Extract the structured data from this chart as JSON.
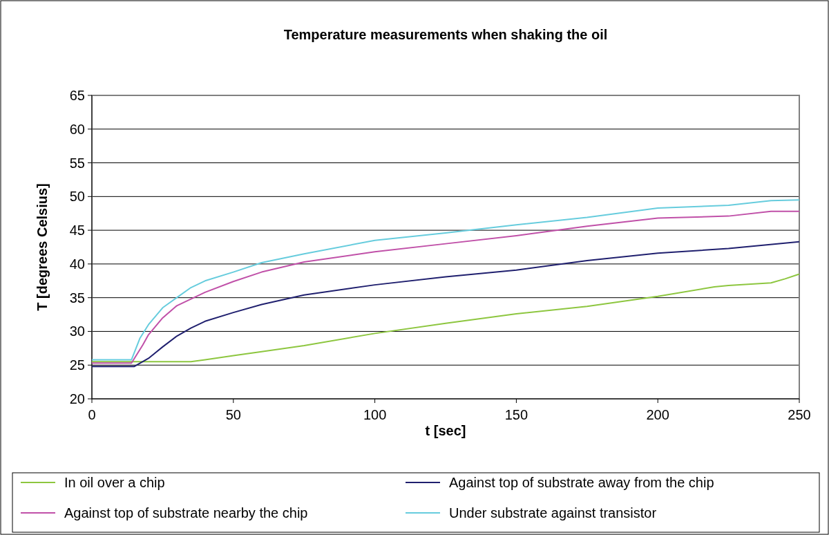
{
  "chart_data": {
    "type": "line",
    "title": "Temperature measurements when shaking the oil",
    "xlabel": "t [sec]",
    "ylabel": "T [degrees Celsius]",
    "xlim": [
      0,
      250
    ],
    "xticks": [
      0,
      50,
      100,
      150,
      200,
      250
    ],
    "ylim": [
      20,
      65
    ],
    "yticks": [
      20,
      25,
      30,
      35,
      40,
      45,
      50,
      55,
      60,
      65
    ],
    "grid": "y",
    "legend": "bottom",
    "marker": "none",
    "line_style": "solid",
    "series": [
      {
        "name": "In oil over a chip",
        "color": "#8dc63f",
        "x": [
          0,
          15,
          35,
          40,
          50,
          60,
          75,
          100,
          125,
          150,
          175,
          200,
          220,
          225,
          240,
          245,
          250
        ],
        "values": [
          25.5,
          25.5,
          25.5,
          25.8,
          26.4,
          27,
          27.9,
          29.7,
          31.2,
          32.6,
          33.7,
          35.2,
          36.6,
          36.8,
          37.2,
          37.8,
          38.5
        ]
      },
      {
        "name": "Against top of substrate away from the chip",
        "color": "#1f1f6e",
        "x": [
          0,
          15,
          20,
          25,
          30,
          35,
          40,
          50,
          60,
          75,
          100,
          125,
          150,
          175,
          200,
          225,
          250
        ],
        "values": [
          24.8,
          24.8,
          26,
          27.7,
          29.3,
          30.5,
          31.5,
          32.8,
          34,
          35.4,
          36.9,
          38.1,
          39.1,
          40.5,
          41.6,
          42.3,
          43.3
        ]
      },
      {
        "name": "Against top of substrate nearby the chip",
        "color": "#c050a8",
        "x": [
          0,
          14,
          18,
          20,
          25,
          30,
          40,
          50,
          60,
          75,
          100,
          125,
          150,
          175,
          200,
          225,
          240,
          250
        ],
        "values": [
          25.3,
          25.3,
          28,
          29.5,
          32,
          33.8,
          35.8,
          37.4,
          38.8,
          40.3,
          41.8,
          43,
          44.2,
          45.6,
          46.8,
          47.1,
          47.8,
          47.8
        ]
      },
      {
        "name": "Under substrate against transistor",
        "color": "#66ccdd",
        "x": [
          0,
          14,
          17,
          20,
          25,
          30,
          35,
          40,
          50,
          60,
          75,
          100,
          125,
          150,
          175,
          200,
          225,
          240,
          250
        ],
        "values": [
          25.8,
          25.8,
          29,
          31,
          33.5,
          35,
          36.5,
          37.5,
          38.8,
          40.2,
          41.5,
          43.5,
          44.6,
          45.8,
          46.9,
          48.3,
          48.7,
          49.4,
          49.5
        ]
      }
    ]
  }
}
